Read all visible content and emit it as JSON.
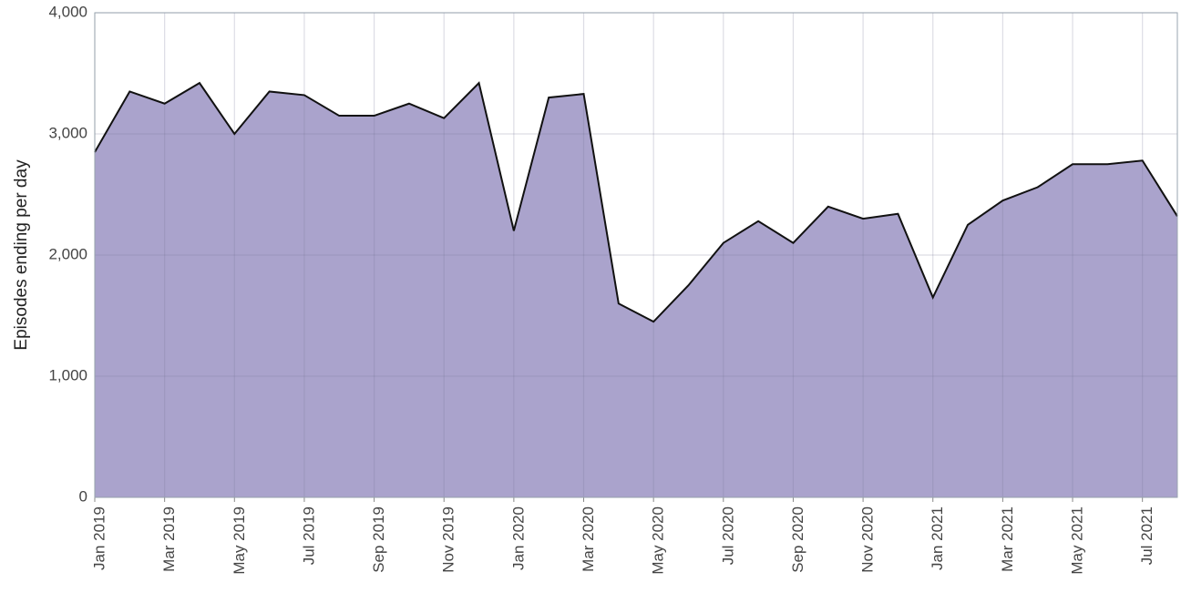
{
  "chart_data": {
    "type": "area",
    "y_label": "Episodes ending per day",
    "x": [
      "2019-01",
      "2019-02",
      "2019-03",
      "2019-04",
      "2019-05",
      "2019-06",
      "2019-07",
      "2019-08",
      "2019-09",
      "2019-10",
      "2019-11",
      "2019-12",
      "2020-01",
      "2020-02",
      "2020-03",
      "2020-04",
      "2020-05",
      "2020-06",
      "2020-07",
      "2020-08",
      "2020-09",
      "2020-10",
      "2020-11",
      "2020-12",
      "2021-01",
      "2021-02",
      "2021-03",
      "2021-04",
      "2021-05",
      "2021-06",
      "2021-07",
      "2021-08"
    ],
    "values": [
      2850,
      3350,
      3250,
      3420,
      3000,
      3350,
      3320,
      3150,
      3150,
      3250,
      3130,
      3420,
      2200,
      3300,
      3330,
      1600,
      1450,
      1750,
      2100,
      2280,
      2100,
      2400,
      2300,
      2340,
      1650,
      2250,
      2450,
      2560,
      2750,
      2750,
      2780,
      2320
    ],
    "fill_color": "#aaa3cc",
    "line_color": "#111111",
    "xlim": [
      "2019-01",
      "2021-08"
    ],
    "xticks": [
      {
        "value": "2019-01",
        "label": "Jan 2019"
      },
      {
        "value": "2019-03",
        "label": "Mar 2019"
      },
      {
        "value": "2019-05",
        "label": "May 2019"
      },
      {
        "value": "2019-07",
        "label": "Jul 2019"
      },
      {
        "value": "2019-09",
        "label": "Sep 2019"
      },
      {
        "value": "2019-11",
        "label": "Nov 2019"
      },
      {
        "value": "2020-01",
        "label": "Jan 2020"
      },
      {
        "value": "2020-03",
        "label": "Mar 2020"
      },
      {
        "value": "2020-05",
        "label": "May 2020"
      },
      {
        "value": "2020-07",
        "label": "Jul 2020"
      },
      {
        "value": "2020-09",
        "label": "Sep 2020"
      },
      {
        "value": "2020-11",
        "label": "Nov 2020"
      },
      {
        "value": "2021-01",
        "label": "Jan 2021"
      },
      {
        "value": "2021-03",
        "label": "Mar 2021"
      },
      {
        "value": "2021-05",
        "label": "May 2021"
      },
      {
        "value": "2021-07",
        "label": "Jul 2021"
      }
    ],
    "ylim": [
      0,
      4000
    ],
    "yticks": [
      0,
      {
        "value": 1000,
        "label": "1,000"
      },
      {
        "value": 2000,
        "label": "2,000"
      },
      {
        "value": 3000,
        "label": "3,000"
      },
      {
        "value": 4000,
        "label": "4,000"
      }
    ],
    "grid": true
  }
}
